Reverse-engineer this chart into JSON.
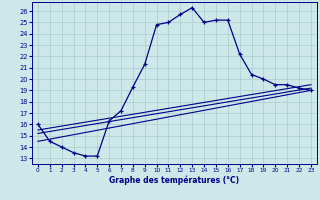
{
  "title": "Graphe des températures (°C)",
  "bg_color": "#cde8e8",
  "line_color": "#00008b",
  "grid_color": "#aacccc",
  "xlim": [
    -0.5,
    23.5
  ],
  "ylim": [
    12.5,
    26.8
  ],
  "yticks": [
    13,
    14,
    15,
    16,
    17,
    18,
    19,
    20,
    21,
    22,
    23,
    24,
    25,
    26
  ],
  "xticks": [
    0,
    1,
    2,
    3,
    4,
    5,
    6,
    7,
    8,
    9,
    10,
    11,
    12,
    13,
    14,
    15,
    16,
    17,
    18,
    19,
    20,
    21,
    22,
    23
  ],
  "main_curve_x": [
    0,
    1,
    2,
    3,
    4,
    5,
    6,
    7,
    8,
    9,
    10,
    11,
    12,
    13,
    14,
    15,
    16,
    17,
    18,
    19,
    20,
    21,
    22,
    23
  ],
  "main_curve_y": [
    16.0,
    14.5,
    14.0,
    13.5,
    13.2,
    13.2,
    16.3,
    17.2,
    19.3,
    21.3,
    24.8,
    25.0,
    25.7,
    26.3,
    25.0,
    25.2,
    25.2,
    22.2,
    20.4,
    20.0,
    19.5,
    19.5,
    19.2,
    19.0
  ],
  "line2_x": [
    0,
    23
  ],
  "line2_y": [
    15.5,
    19.5
  ],
  "line3_x": [
    0,
    23
  ],
  "line3_y": [
    15.2,
    19.2
  ],
  "line4_x": [
    0,
    23
  ],
  "line4_y": [
    14.5,
    19.0
  ]
}
